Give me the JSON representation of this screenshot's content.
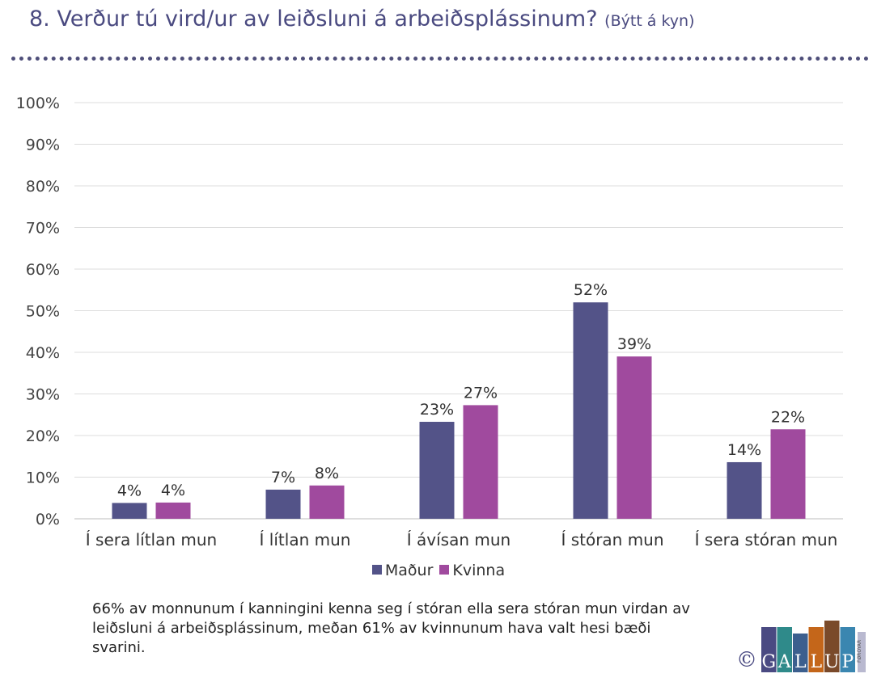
{
  "header": {
    "title": "8. Verður tú vird/ur av leiðsluni á arbeiðsplássinum?",
    "subtitle": "(Býtt á kyn)"
  },
  "chart_data": {
    "type": "bar",
    "categories": [
      "Í sera lítlan mun",
      "Í lítlan mun",
      "Í ávísan mun",
      "Í stóran mun",
      "Í sera stóran mun"
    ],
    "series": [
      {
        "name": "Maður",
        "color": "#535388",
        "values": [
          3.8,
          7.0,
          23.3,
          52.0,
          13.6
        ],
        "labels": [
          "4%",
          "7%",
          "23%",
          "52%",
          "14%"
        ]
      },
      {
        "name": "Kvinna",
        "color": "#a04a9e",
        "values": [
          3.9,
          8.0,
          27.3,
          39.0,
          21.5
        ],
        "labels": [
          "4%",
          "8%",
          "27%",
          "39%",
          "22%"
        ]
      }
    ],
    "ylim": [
      0,
      100
    ],
    "yticks": [
      "0%",
      "10%",
      "20%",
      "30%",
      "40%",
      "50%",
      "60%",
      "70%",
      "80%",
      "90%",
      "100%"
    ],
    "grid": true,
    "legend": "bottom"
  },
  "note": {
    "text": "66% av monnunum í kanningini kenna seg í stóran ella sera stóran mun virdan av leiðsluni á arbeiðsplássinum, meðan 61% av kvinnunum hava valt hesi bæði svarini."
  },
  "logo": {
    "copyright": "©",
    "letters": [
      "G",
      "A",
      "L",
      "L",
      "U",
      "P"
    ],
    "colors": [
      "#4a4a82",
      "#2f8a8a",
      "#3c5f8e",
      "#c4661a",
      "#7a4a2a",
      "#3a86b0"
    ],
    "small_text": "FØROYAR"
  }
}
